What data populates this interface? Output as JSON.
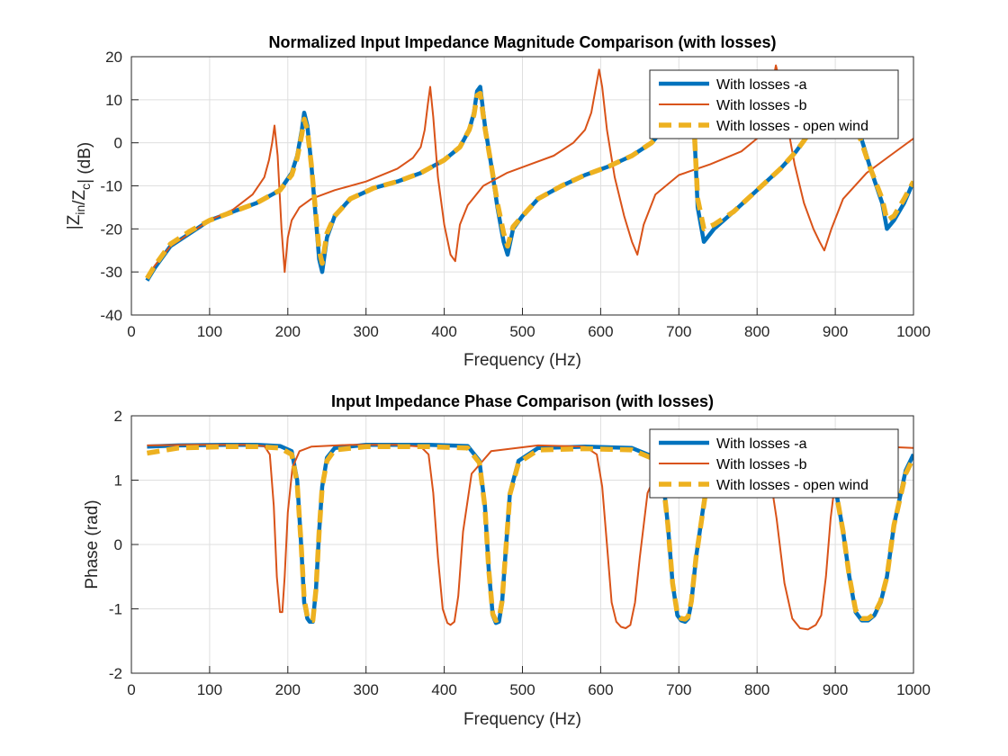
{
  "chart_data": [
    {
      "type": "line",
      "title": "Normalized Input Impedance Magnitude Comparison (with losses)",
      "xlabel": "Frequency (Hz)",
      "ylabel": "|Z_in/Z_c| (dB)",
      "xlim": [
        0,
        1000
      ],
      "ylim": [
        -40,
        20
      ],
      "xticks": [
        "0",
        "100",
        "200",
        "300",
        "400",
        "500",
        "600",
        "700",
        "800",
        "900",
        "1000"
      ],
      "yticks": [
        "-40",
        "-30",
        "-20",
        "-10",
        "0",
        "10",
        "20"
      ],
      "grid": true,
      "legend_position": "top-right",
      "series": [
        {
          "name": "With losses -a",
          "color": "#0072BD",
          "style": "solid-thick",
          "x": [
            20,
            30,
            50,
            75,
            100,
            130,
            160,
            190,
            205,
            212,
            218,
            221,
            225,
            230,
            236,
            240,
            244,
            250,
            260,
            280,
            310,
            340,
            370,
            400,
            420,
            432,
            438,
            442,
            446,
            452,
            460,
            468,
            476,
            481,
            488,
            500,
            520,
            550,
            580,
            610,
            640,
            665,
            685,
            695,
            700,
            706,
            712,
            718,
            724,
            732,
            745,
            770,
            800,
            830,
            850,
            870,
            885,
            898,
            905,
            912,
            920,
            930,
            945,
            960,
            966,
            975,
            988,
            1000
          ],
          "y": [
            -32,
            -29,
            -24,
            -21,
            -18,
            -16,
            -14,
            -11,
            -7,
            -3,
            3,
            7,
            4,
            -5,
            -18,
            -27,
            -30,
            -22,
            -17,
            -13,
            -10.5,
            -9,
            -7,
            -4,
            -1,
            3,
            7,
            12,
            13,
            4,
            -5,
            -15,
            -23,
            -26,
            -20,
            -17,
            -13,
            -10,
            -7.5,
            -5.5,
            -3,
            0,
            4,
            9,
            12,
            15,
            16,
            10,
            -15,
            -23,
            -20,
            -16,
            -11,
            -6,
            -2,
            3,
            7,
            13,
            15,
            13,
            9,
            3,
            -6,
            -14,
            -20,
            -18,
            -14,
            -9
          ]
        },
        {
          "name": "With losses -b",
          "color": "#D95319",
          "style": "solid-thin",
          "x": [
            20,
            30,
            50,
            75,
            100,
            130,
            155,
            170,
            176,
            180,
            183,
            187,
            192,
            196,
            200,
            205,
            215,
            230,
            260,
            300,
            340,
            360,
            370,
            375,
            379,
            382,
            386,
            392,
            400,
            408,
            414,
            420,
            430,
            450,
            480,
            510,
            540,
            565,
            580,
            588,
            594,
            598,
            602,
            608,
            618,
            630,
            640,
            647,
            655,
            670,
            700,
            740,
            780,
            800,
            810,
            816,
            820,
            824,
            828,
            836,
            848,
            860,
            872,
            880,
            886,
            895,
            910,
            940,
            970,
            1000
          ],
          "y": [
            -31.5,
            -28.5,
            -24,
            -21,
            -18,
            -15.5,
            -12,
            -8,
            -4,
            0,
            4,
            -3,
            -20,
            -30,
            -22,
            -18,
            -15,
            -13,
            -11,
            -9,
            -6,
            -3.5,
            -1,
            3,
            9,
            13,
            6,
            -8,
            -19,
            -26,
            -27.5,
            -19,
            -14.5,
            -10,
            -7,
            -5,
            -3,
            0,
            3,
            7,
            13,
            17,
            13,
            3,
            -8,
            -17,
            -23,
            -26,
            -19,
            -12,
            -7.5,
            -5,
            -2,
            1,
            5,
            10,
            14,
            18,
            15,
            7,
            -5,
            -14,
            -20,
            -23,
            -25,
            -20,
            -13,
            -7,
            -3,
            1
          ]
        },
        {
          "name": "With losses - open wind",
          "color": "#EDB120",
          "style": "dashed-thick",
          "x": [
            20,
            30,
            50,
            75,
            100,
            130,
            160,
            190,
            205,
            212,
            218,
            221,
            225,
            230,
            236,
            240,
            244,
            250,
            260,
            280,
            310,
            340,
            370,
            400,
            420,
            432,
            438,
            442,
            446,
            452,
            460,
            468,
            476,
            481,
            488,
            500,
            520,
            550,
            580,
            610,
            640,
            665,
            685,
            695,
            700,
            706,
            712,
            718,
            724,
            732,
            745,
            770,
            800,
            830,
            850,
            870,
            885,
            898,
            905,
            912,
            920,
            930,
            945,
            960,
            966,
            975,
            988,
            1000
          ],
          "y": [
            -31.5,
            -28.5,
            -23.5,
            -20.5,
            -18,
            -16,
            -14,
            -11,
            -7.5,
            -3.5,
            2,
            5.5,
            3,
            -5,
            -17,
            -25,
            -28,
            -21,
            -17,
            -13,
            -10.5,
            -9,
            -7,
            -4,
            -1,
            3,
            6.5,
            11,
            11.5,
            3.5,
            -5,
            -14,
            -21,
            -24,
            -19.5,
            -17,
            -13,
            -10,
            -7.5,
            -5.5,
            -3,
            0,
            4,
            8.5,
            11,
            13.5,
            14,
            9,
            -13,
            -20,
            -19,
            -16,
            -11,
            -6,
            -2,
            3,
            6.5,
            11.5,
            13,
            11.5,
            8,
            2,
            -6,
            -13,
            -18,
            -17,
            -13,
            -9
          ]
        }
      ]
    },
    {
      "type": "line",
      "title": "Input Impedance Phase Comparison (with losses)",
      "xlabel": "Frequency (Hz)",
      "ylabel": "Phase (rad)",
      "xlim": [
        0,
        1000
      ],
      "ylim": [
        -2,
        2
      ],
      "xticks": [
        "0",
        "100",
        "200",
        "300",
        "400",
        "500",
        "600",
        "700",
        "800",
        "900",
        "1000"
      ],
      "yticks": [
        "-2",
        "-1",
        "0",
        "1",
        "2"
      ],
      "grid": true,
      "legend_position": "top-right",
      "series": [
        {
          "name": "With losses -a",
          "color": "#0072BD",
          "style": "solid-thick",
          "x": [
            20,
            60,
            120,
            160,
            190,
            205,
            212,
            217,
            221,
            225,
            228,
            232,
            236,
            240,
            244,
            250,
            260,
            300,
            380,
            430,
            445,
            452,
            457,
            462,
            466,
            470,
            474,
            478,
            484,
            495,
            520,
            580,
            640,
            670,
            680,
            686,
            692,
            698,
            703,
            708,
            712,
            716,
            722,
            735,
            780,
            830,
            860,
            880,
            900,
            910,
            918,
            926,
            934,
            942,
            950,
            958,
            966,
            975,
            990,
            1000
          ],
          "y": [
            1.52,
            1.54,
            1.55,
            1.55,
            1.53,
            1.45,
            1.0,
            0.0,
            -0.9,
            -1.15,
            -1.2,
            -1.2,
            -0.7,
            0.2,
            0.9,
            1.35,
            1.5,
            1.55,
            1.55,
            1.53,
            1.3,
            0.6,
            -0.4,
            -1.1,
            -1.22,
            -1.2,
            -0.9,
            -0.2,
            0.8,
            1.3,
            1.5,
            1.52,
            1.5,
            1.35,
            1.0,
            0.3,
            -0.6,
            -1.1,
            -1.18,
            -1.2,
            -1.15,
            -0.9,
            -0.2,
            0.9,
            1.45,
            1.52,
            1.48,
            1.35,
            0.9,
            0.2,
            -0.5,
            -1.05,
            -1.18,
            -1.18,
            -1.1,
            -0.9,
            -0.5,
            0.3,
            1.15,
            1.4
          ]
        },
        {
          "name": "With losses -b",
          "color": "#D95319",
          "style": "solid-thin",
          "x": [
            20,
            80,
            150,
            170,
            177,
            182,
            186,
            190,
            193,
            196,
            200,
            206,
            215,
            230,
            280,
            340,
            370,
            380,
            386,
            392,
            398,
            404,
            408,
            413,
            418,
            424,
            435,
            460,
            520,
            580,
            595,
            602,
            608,
            614,
            620,
            626,
            632,
            638,
            644,
            650,
            660,
            680,
            740,
            800,
            815,
            825,
            835,
            845,
            855,
            865,
            875,
            882,
            888,
            894,
            900,
            915,
            960,
            1000
          ],
          "y": [
            1.54,
            1.55,
            1.55,
            1.53,
            1.4,
            0.6,
            -0.5,
            -1.05,
            -1.05,
            -0.5,
            0.5,
            1.2,
            1.45,
            1.52,
            1.55,
            1.55,
            1.52,
            1.4,
            0.8,
            -0.2,
            -1.0,
            -1.22,
            -1.25,
            -1.2,
            -0.8,
            0.2,
            1.1,
            1.45,
            1.54,
            1.52,
            1.4,
            0.9,
            0.0,
            -0.9,
            -1.2,
            -1.28,
            -1.3,
            -1.25,
            -0.9,
            -0.2,
            0.8,
            1.35,
            1.52,
            1.45,
            1.2,
            0.4,
            -0.6,
            -1.15,
            -1.3,
            -1.32,
            -1.25,
            -1.1,
            -0.5,
            0.4,
            1.0,
            1.4,
            1.52,
            1.5
          ]
        },
        {
          "name": "With losses - open wind",
          "color": "#EDB120",
          "style": "dashed-thick",
          "x": [
            20,
            60,
            120,
            160,
            190,
            205,
            212,
            217,
            221,
            225,
            228,
            232,
            236,
            240,
            244,
            250,
            260,
            300,
            380,
            430,
            445,
            452,
            457,
            462,
            466,
            470,
            474,
            478,
            484,
            495,
            520,
            580,
            640,
            670,
            680,
            686,
            692,
            698,
            703,
            708,
            712,
            716,
            722,
            735,
            780,
            830,
            860,
            880,
            900,
            910,
            918,
            926,
            934,
            942,
            950,
            958,
            966,
            975,
            990,
            1000
          ],
          "y": [
            1.42,
            1.5,
            1.52,
            1.52,
            1.5,
            1.4,
            0.95,
            0.0,
            -0.85,
            -1.12,
            -1.18,
            -1.18,
            -0.7,
            0.2,
            0.9,
            1.3,
            1.47,
            1.52,
            1.52,
            1.5,
            1.27,
            0.58,
            -0.4,
            -1.08,
            -1.18,
            -1.16,
            -0.88,
            -0.2,
            0.78,
            1.27,
            1.47,
            1.49,
            1.47,
            1.32,
            0.97,
            0.3,
            -0.6,
            -1.08,
            -1.15,
            -1.16,
            -1.12,
            -0.88,
            -0.2,
            0.87,
            1.42,
            1.49,
            1.45,
            1.32,
            0.88,
            0.2,
            -0.5,
            -1.02,
            -1.15,
            -1.15,
            -1.08,
            -0.88,
            -0.5,
            0.3,
            1.1,
            1.35
          ]
        }
      ]
    }
  ]
}
